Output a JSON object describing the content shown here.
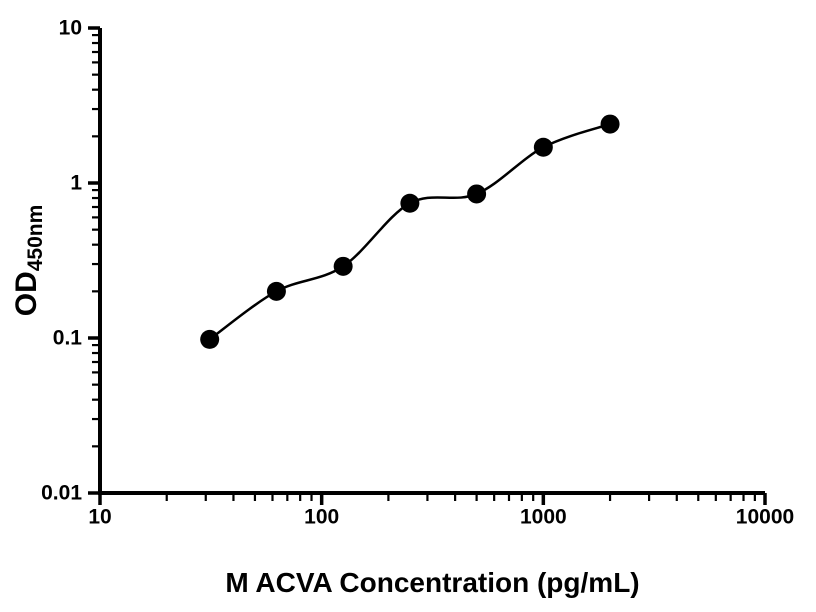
{
  "figure": {
    "background": "#ffffff"
  },
  "chart_data": {
    "type": "scatter",
    "title": "",
    "xlabel": "M ACVA Concentration (pg/mL)",
    "ylabel_main": "OD",
    "ylabel_sub": "450nm",
    "xscale": "log",
    "yscale": "log",
    "xlim": [
      10,
      10000
    ],
    "ylim": [
      0.01,
      10
    ],
    "x_tick_values": [
      10,
      100,
      1000,
      10000
    ],
    "x_tick_labels": [
      "10",
      "100",
      "1000",
      "10000"
    ],
    "y_tick_values": [
      0.01,
      0.1,
      1,
      10
    ],
    "y_tick_labels": [
      "0.01",
      "0.1",
      "1",
      "10"
    ],
    "grid": false,
    "legend": "none",
    "x": [
      31.25,
      62.5,
      125,
      250,
      500,
      1000,
      2000
    ],
    "y": [
      0.098,
      0.2,
      0.29,
      0.74,
      0.85,
      1.7,
      2.4
    ],
    "marker": "filled-circle",
    "marker_color": "#000000",
    "line": "smooth-fit-curve",
    "line_color": "#000000",
    "axis_color": "#000000"
  }
}
